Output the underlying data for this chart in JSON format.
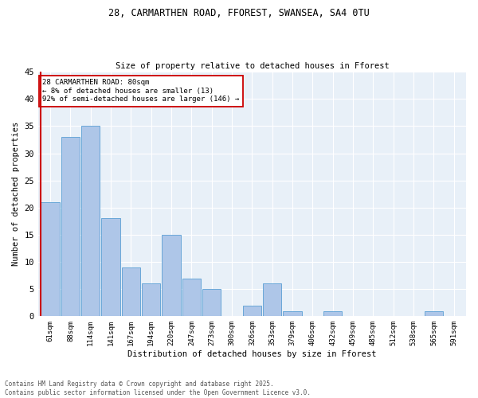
{
  "title_line1": "28, CARMARTHEN ROAD, FFOREST, SWANSEA, SA4 0TU",
  "title_line2": "Size of property relative to detached houses in Fforest",
  "xlabel": "Distribution of detached houses by size in Fforest",
  "ylabel": "Number of detached properties",
  "categories": [
    "61sqm",
    "88sqm",
    "114sqm",
    "141sqm",
    "167sqm",
    "194sqm",
    "220sqm",
    "247sqm",
    "273sqm",
    "300sqm",
    "326sqm",
    "353sqm",
    "379sqm",
    "406sqm",
    "432sqm",
    "459sqm",
    "485sqm",
    "512sqm",
    "538sqm",
    "565sqm",
    "591sqm"
  ],
  "values": [
    21,
    33,
    35,
    18,
    9,
    6,
    15,
    7,
    5,
    0,
    2,
    6,
    1,
    0,
    1,
    0,
    0,
    0,
    0,
    1,
    0
  ],
  "bar_color": "#aec6e8",
  "bar_edge_color": "#5a9fd4",
  "vline_color": "#cc0000",
  "annotation_text_line1": "28 CARMARTHEN ROAD: 80sqm",
  "annotation_text_line2": "← 8% of detached houses are smaller (13)",
  "annotation_text_line3": "92% of semi-detached houses are larger (146) →",
  "annotation_box_color": "white",
  "annotation_box_edge_color": "#cc0000",
  "ylim": [
    0,
    45
  ],
  "yticks": [
    0,
    5,
    10,
    15,
    20,
    25,
    30,
    35,
    40,
    45
  ],
  "bg_color": "#e8f0f8",
  "footer_line1": "Contains HM Land Registry data © Crown copyright and database right 2025.",
  "footer_line2": "Contains public sector information licensed under the Open Government Licence v3.0."
}
